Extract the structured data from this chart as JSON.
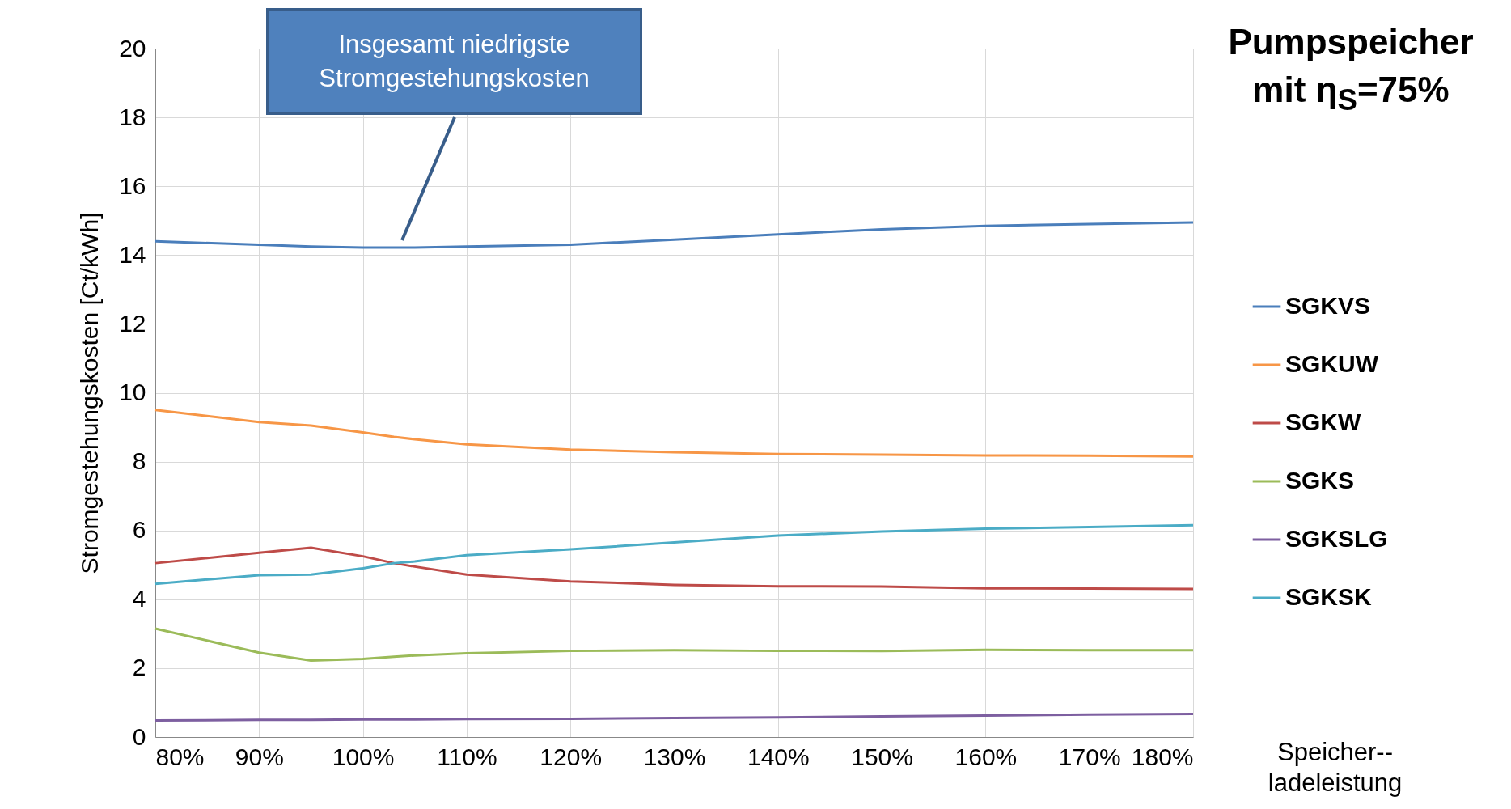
{
  "chart_data": {
    "type": "line",
    "title": "Pumpspeicher mit η$_{S}$=75%",
    "xlabel": "Speicher-- ladeleistung",
    "ylabel": "Stromgestehungskosten [Ct/kWh]",
    "x": [
      80,
      90,
      95,
      100,
      103,
      105,
      110,
      120,
      130,
      140,
      150,
      160,
      170,
      180
    ],
    "series": [
      {
        "name": "SGKVS",
        "color": "#4a7ebb",
        "values": [
          14.4,
          14.3,
          14.25,
          14.22,
          14.22,
          14.22,
          14.25,
          14.3,
          14.45,
          14.6,
          14.75,
          14.85,
          14.9,
          14.95
        ]
      },
      {
        "name": "SGKUW",
        "color": "#f79646",
        "values": [
          9.5,
          9.15,
          9.05,
          8.85,
          8.72,
          8.65,
          8.5,
          8.35,
          8.27,
          8.22,
          8.2,
          8.18,
          8.17,
          8.15
        ]
      },
      {
        "name": "SGKW",
        "color": "#be4b48",
        "values": [
          5.05,
          5.35,
          5.5,
          5.25,
          5.05,
          4.95,
          4.72,
          4.52,
          4.42,
          4.38,
          4.37,
          4.32,
          4.31,
          4.3
        ]
      },
      {
        "name": "SGKS",
        "color": "#9bbb59",
        "values": [
          3.15,
          2.45,
          2.22,
          2.27,
          2.33,
          2.37,
          2.43,
          2.5,
          2.52,
          2.5,
          2.5,
          2.53,
          2.52,
          2.52
        ]
      },
      {
        "name": "SGKSLG",
        "color": "#7d5fa0",
        "values": [
          0.48,
          0.5,
          0.5,
          0.51,
          0.51,
          0.51,
          0.52,
          0.53,
          0.55,
          0.57,
          0.6,
          0.62,
          0.65,
          0.67
        ]
      },
      {
        "name": "SGKSK",
        "color": "#4bacc6",
        "values": [
          4.45,
          4.7,
          4.72,
          4.9,
          5.05,
          5.1,
          5.28,
          5.45,
          5.65,
          5.85,
          5.97,
          6.05,
          6.1,
          6.15
        ]
      }
    ],
    "xlim": [
      80,
      180
    ],
    "xticks": [
      {
        "value": 80,
        "label": "80%"
      },
      {
        "value": 90,
        "label": "90%"
      },
      {
        "value": 100,
        "label": "100%"
      },
      {
        "value": 110,
        "label": "110%"
      },
      {
        "value": 120,
        "label": "120%"
      },
      {
        "value": 130,
        "label": "130%"
      },
      {
        "value": 140,
        "label": "140%"
      },
      {
        "value": 150,
        "label": "150%"
      },
      {
        "value": 160,
        "label": "160%"
      },
      {
        "value": 170,
        "label": "170%"
      },
      {
        "value": 180,
        "label": "180%"
      }
    ],
    "ylim": [
      0,
      20
    ],
    "yticks": [
      0,
      2,
      4,
      6,
      8,
      10,
      12,
      14,
      16,
      18,
      20
    ],
    "annotations": [
      "Insgesamt niedrigste Stromgestehungskosten"
    ],
    "grid": true,
    "legend": "right",
    "marker": "none",
    "line_style": "solid"
  }
}
